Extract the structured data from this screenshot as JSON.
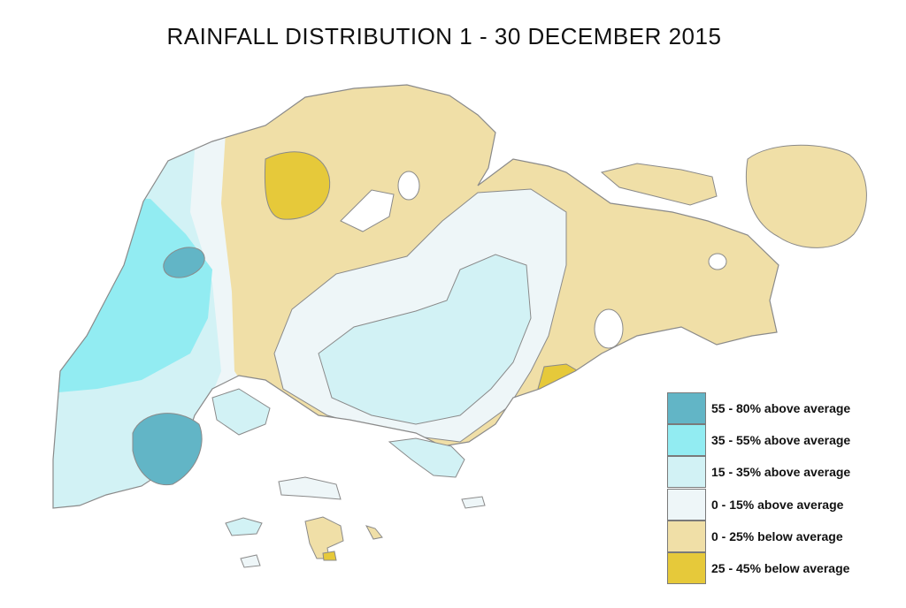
{
  "title": "RAINFALL DISTRIBUTION 1 - 30 DECEMBER 2015",
  "legend": [
    {
      "label": "55 - 80% above average",
      "color": "#62b5c6"
    },
    {
      "label": "35 - 55% above average",
      "color": "#92ecf2"
    },
    {
      "label": "15 - 35% above average",
      "color": "#d2f2f5"
    },
    {
      "label": "0 - 15% above average",
      "color": "#eef6f8"
    },
    {
      "label": "0 - 25% below average",
      "color": "#f0dfa7"
    },
    {
      "label": "25 - 45% below average",
      "color": "#e6c93a"
    }
  ],
  "outline_color": "#8a8a8a"
}
